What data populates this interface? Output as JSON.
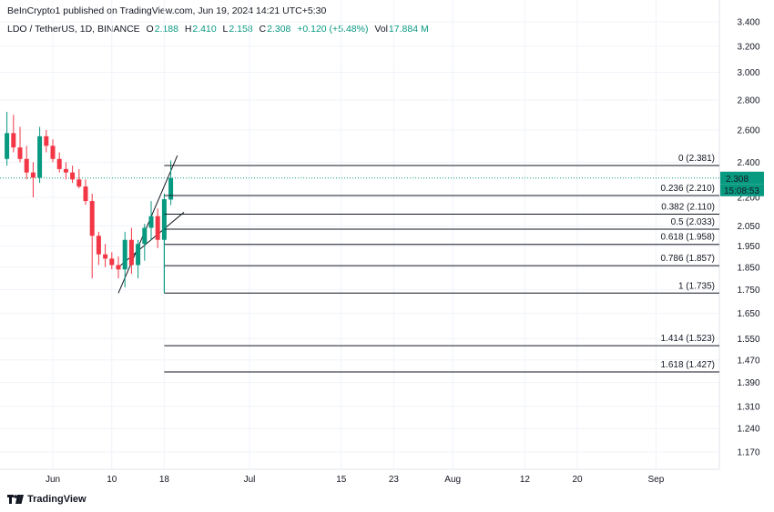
{
  "header": {
    "publisher": "BeInCrypto1 published on TradingView.com, Jun 19, 2024 14:21 UTC+5:30"
  },
  "ohlc": {
    "symbol": "LDO / TetherUS, 1D, BINANCE",
    "o_label": "O",
    "o_value": "2.188",
    "h_label": "H",
    "h_value": "2.410",
    "l_label": "L",
    "l_value": "2.158",
    "c_label": "C",
    "c_value": "2.308",
    "change": "+0.120 (+5.48%)",
    "vol_label": "Vol",
    "vol_value": "17.884 M"
  },
  "price_tag": {
    "price": "2.308",
    "countdown": "15:08:53"
  },
  "footer": {
    "brand": "TradingView"
  },
  "colors": {
    "up": "#089981",
    "down": "#f23645",
    "grid": "#f0f3fa",
    "line": "#131722"
  },
  "chart_data": {
    "type": "candlestick",
    "y_axis_scale": "log",
    "ylim": [
      1.12,
      3.45
    ],
    "y_ticks": [
      "3.400",
      "3.200",
      "3.000",
      "2.800",
      "2.600",
      "2.400",
      "2.200",
      "2.050",
      "1.950",
      "1.850",
      "1.750",
      "1.650",
      "1.550",
      "1.470",
      "1.390",
      "1.310",
      "1.240",
      "1.170"
    ],
    "x_ticks": [
      {
        "label": "Jun",
        "date": "2024-06-01"
      },
      {
        "label": "10",
        "date": "2024-06-10"
      },
      {
        "label": "18",
        "date": "2024-06-18"
      },
      {
        "label": "Jul",
        "date": "2024-07-01"
      },
      {
        "label": "15",
        "date": "2024-07-15"
      },
      {
        "label": "23",
        "date": "2024-07-23"
      },
      {
        "label": "Aug",
        "date": "2024-08-01"
      },
      {
        "label": "12",
        "date": "2024-08-12"
      },
      {
        "label": "20",
        "date": "2024-08-20"
      },
      {
        "label": "Sep",
        "date": "2024-09-01"
      }
    ],
    "candles": [
      {
        "date": "2024-05-25",
        "o": 2.42,
        "h": 2.72,
        "l": 2.38,
        "c": 2.58
      },
      {
        "date": "2024-05-26",
        "o": 2.58,
        "h": 2.7,
        "l": 2.46,
        "c": 2.49
      },
      {
        "date": "2024-05-27",
        "o": 2.49,
        "h": 2.62,
        "l": 2.4,
        "c": 2.42
      },
      {
        "date": "2024-05-28",
        "o": 2.42,
        "h": 2.5,
        "l": 2.3,
        "c": 2.34
      },
      {
        "date": "2024-05-29",
        "o": 2.34,
        "h": 2.4,
        "l": 2.2,
        "c": 2.31
      },
      {
        "date": "2024-05-30",
        "o": 2.31,
        "h": 2.62,
        "l": 2.28,
        "c": 2.56
      },
      {
        "date": "2024-05-31",
        "o": 2.56,
        "h": 2.6,
        "l": 2.46,
        "c": 2.5
      },
      {
        "date": "2024-06-01",
        "o": 2.5,
        "h": 2.54,
        "l": 2.4,
        "c": 2.42
      },
      {
        "date": "2024-06-02",
        "o": 2.42,
        "h": 2.46,
        "l": 2.34,
        "c": 2.36
      },
      {
        "date": "2024-06-03",
        "o": 2.36,
        "h": 2.4,
        "l": 2.3,
        "c": 2.34
      },
      {
        "date": "2024-06-04",
        "o": 2.34,
        "h": 2.38,
        "l": 2.28,
        "c": 2.3
      },
      {
        "date": "2024-06-05",
        "o": 2.3,
        "h": 2.36,
        "l": 2.25,
        "c": 2.26
      },
      {
        "date": "2024-06-06",
        "o": 2.26,
        "h": 2.3,
        "l": 2.16,
        "c": 2.18
      },
      {
        "date": "2024-06-07",
        "o": 2.18,
        "h": 2.22,
        "l": 1.8,
        "c": 2.0
      },
      {
        "date": "2024-06-08",
        "o": 2.0,
        "h": 2.02,
        "l": 1.86,
        "c": 1.91
      },
      {
        "date": "2024-06-09",
        "o": 1.91,
        "h": 1.96,
        "l": 1.85,
        "c": 1.89
      },
      {
        "date": "2024-06-10",
        "o": 1.89,
        "h": 1.92,
        "l": 1.84,
        "c": 1.86
      },
      {
        "date": "2024-06-11",
        "o": 1.86,
        "h": 1.9,
        "l": 1.8,
        "c": 1.84
      },
      {
        "date": "2024-06-12",
        "o": 1.84,
        "h": 2.02,
        "l": 1.76,
        "c": 1.98
      },
      {
        "date": "2024-06-13",
        "o": 1.98,
        "h": 2.04,
        "l": 1.82,
        "c": 1.86
      },
      {
        "date": "2024-06-14",
        "o": 1.86,
        "h": 1.98,
        "l": 1.8,
        "c": 1.96
      },
      {
        "date": "2024-06-15",
        "o": 1.96,
        "h": 2.06,
        "l": 1.88,
        "c": 2.04
      },
      {
        "date": "2024-06-16",
        "o": 2.04,
        "h": 2.18,
        "l": 1.98,
        "c": 2.1
      },
      {
        "date": "2024-06-17",
        "o": 2.1,
        "h": 2.14,
        "l": 1.94,
        "c": 1.98
      },
      {
        "date": "2024-06-18",
        "o": 1.98,
        "h": 2.22,
        "l": 1.735,
        "c": 2.19
      },
      {
        "date": "2024-06-19",
        "o": 2.188,
        "h": 2.41,
        "l": 2.158,
        "c": 2.308
      }
    ],
    "fib_levels": [
      {
        "label": "0 (2.381)",
        "value": 2.381
      },
      {
        "label": "0.236 (2.210)",
        "value": 2.21
      },
      {
        "label": "0.382 (2.110)",
        "value": 2.11
      },
      {
        "label": "0.5 (2.033)",
        "value": 2.033
      },
      {
        "label": "0.618 (1.958)",
        "value": 1.958
      },
      {
        "label": "0.786 (1.857)",
        "value": 1.857
      },
      {
        "label": "1 (1.735)",
        "value": 1.735
      },
      {
        "label": "1.414 (1.523)",
        "value": 1.523
      },
      {
        "label": "1.618 (1.427)",
        "value": 1.427
      }
    ],
    "fib_start_date": "2024-06-18",
    "current_price": 2.308,
    "channel": [
      {
        "from": {
          "date": "2024-06-11",
          "value": 1.735
        },
        "to": {
          "date": "2024-06-20",
          "value": 2.44
        }
      },
      {
        "from": {
          "date": "2024-06-11",
          "value": 1.85
        },
        "to": {
          "date": "2024-06-21",
          "value": 2.12
        }
      }
    ]
  }
}
